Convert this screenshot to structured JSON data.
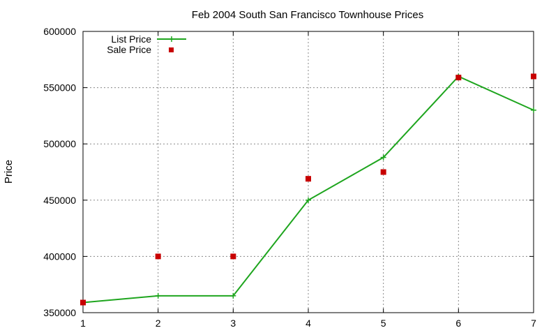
{
  "chart_data": {
    "type": "line",
    "title": "Feb 2004 South San Francisco Townhouse Prices",
    "xlabel": "",
    "ylabel": "Price",
    "x": [
      1,
      2,
      3,
      4,
      5,
      6,
      7
    ],
    "xlim": [
      1,
      7
    ],
    "ylim": [
      350000,
      600000
    ],
    "xticks": [
      "1",
      "2",
      "3",
      "4",
      "5",
      "6",
      "7"
    ],
    "yticks": [
      "350000",
      "400000",
      "450000",
      "500000",
      "550000",
      "600000"
    ],
    "grid": true,
    "legend_position": "top-left",
    "series": [
      {
        "name": "List Price",
        "style": "line-with-plus-markers",
        "color": "#1ea51e",
        "values": [
          359000,
          365000,
          365000,
          450000,
          488000,
          560000,
          530000
        ]
      },
      {
        "name": "Sale Price",
        "style": "square-markers",
        "color": "#c80000",
        "values": [
          359000,
          400000,
          400000,
          469000,
          475000,
          559000,
          560000
        ]
      }
    ]
  }
}
